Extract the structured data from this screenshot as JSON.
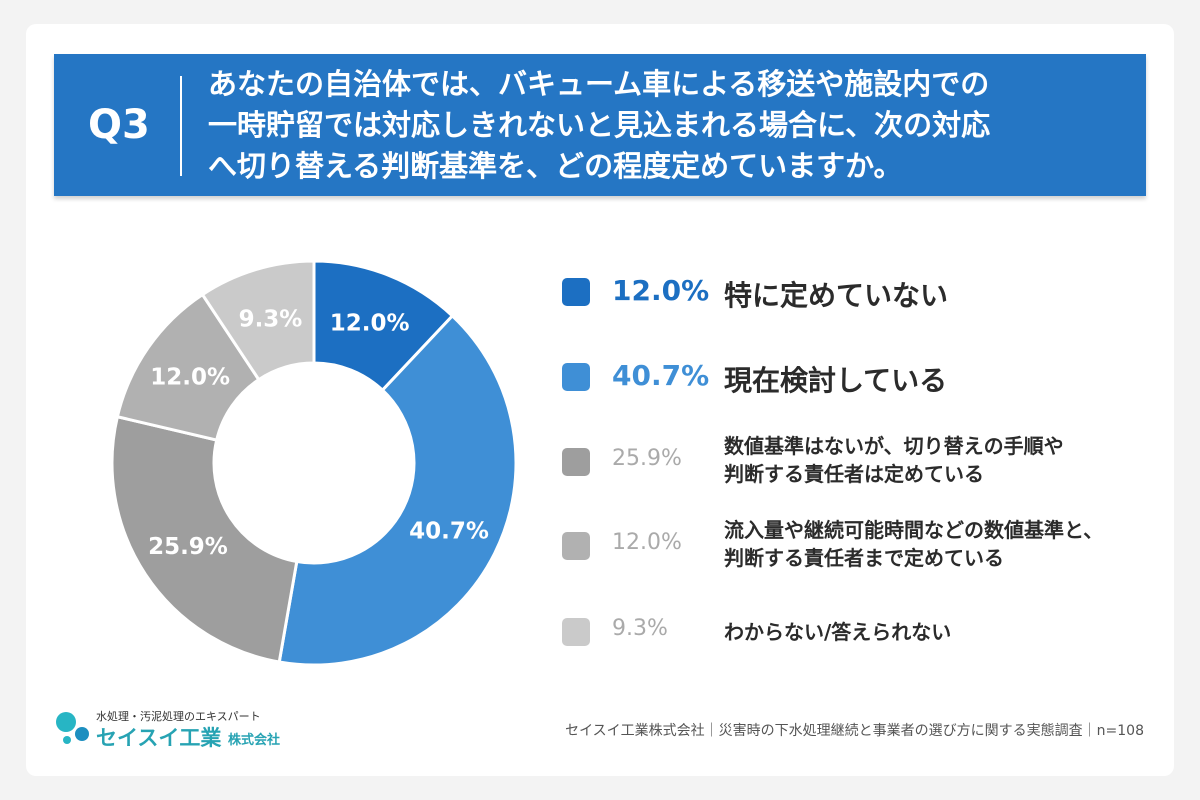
{
  "header": {
    "q_label": "Q3",
    "question_lines": [
      "あなたの自治体では、バキューム車による移送や施設内での",
      "一時貯留では対応しきれないと見込まれる場合に、次の対応",
      "へ切り替える判断基準を、どの程度定めていますか。"
    ]
  },
  "chart_data": {
    "type": "pie",
    "donut": true,
    "unit": "%",
    "slices": [
      {
        "label": "特に定めていない",
        "value": 12.0,
        "display": "12.0%",
        "color": "#1c6fc2"
      },
      {
        "label": "現在検討している",
        "value": 40.7,
        "display": "40.7%",
        "color": "#3f8fd6"
      },
      {
        "label_lines": [
          "数値基準はないが、切り替えの手順や",
          "判断する責任者は定めている"
        ],
        "value": 25.9,
        "display": "25.9%",
        "color": "#9e9e9e"
      },
      {
        "label_lines": [
          "流入量や継続可能時間などの数値基準と、",
          "判断する責任者まで定めている"
        ],
        "value": 12.0,
        "display": "12.0%",
        "color": "#b1b1b1"
      },
      {
        "label": "わからない/答えられない",
        "value": 9.3,
        "display": "9.3%",
        "color": "#cacaca"
      }
    ],
    "legend_position": "right"
  },
  "footer": {
    "logo_tagline": "水処理・汚泥処理のエキスパート",
    "logo_name": "セイスイ工業",
    "logo_suffix": "株式会社",
    "source": "セイスイ工業株式会社｜災害時の下水処理継続と事業者の選び方に関する実態調査｜n=108"
  }
}
